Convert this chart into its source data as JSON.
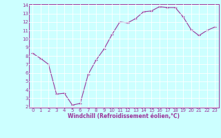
{
  "x": [
    0,
    1,
    2,
    3,
    4,
    5,
    6,
    7,
    8,
    9,
    10,
    11,
    12,
    13,
    14,
    15,
    16,
    17,
    18,
    19,
    20,
    21,
    22,
    23
  ],
  "y": [
    8.3,
    7.7,
    7.0,
    3.5,
    3.6,
    2.2,
    2.4,
    5.8,
    7.5,
    8.8,
    10.5,
    12.0,
    11.9,
    12.4,
    13.2,
    13.3,
    13.8,
    13.7,
    13.7,
    12.6,
    11.1,
    10.4,
    11.0,
    11.4
  ],
  "xlabel": "Windchill (Refroidissement éolien,°C)",
  "color": "#993399",
  "bg_color": "#ccffff",
  "grid_color": "#ffffff",
  "ylim": [
    2,
    14
  ],
  "xlim": [
    -0.5,
    23.5
  ],
  "yticks": [
    2,
    3,
    4,
    5,
    6,
    7,
    8,
    9,
    10,
    11,
    12,
    13,
    14
  ],
  "xticks": [
    0,
    1,
    2,
    3,
    4,
    5,
    6,
    7,
    8,
    9,
    10,
    11,
    12,
    13,
    14,
    15,
    16,
    17,
    18,
    19,
    20,
    21,
    22,
    23
  ],
  "marker": "+",
  "markersize": 3,
  "linewidth": 0.8,
  "tick_fontsize": 5,
  "xlabel_fontsize": 5.5
}
